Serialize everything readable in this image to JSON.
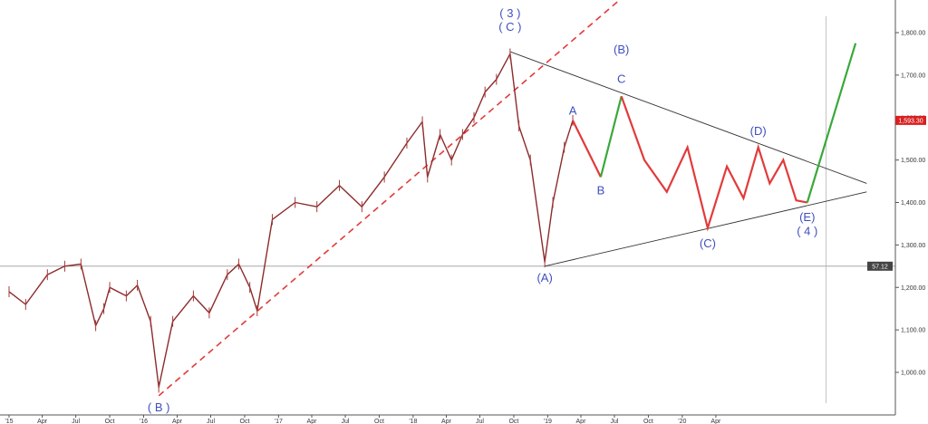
{
  "chart_data": {
    "type": "line",
    "title": "",
    "xlabel": "",
    "ylabel": "",
    "ylim": [
      890,
      1870
    ],
    "grid": false,
    "y_ticks": [
      "1,800.00",
      "1,700.00",
      "1,600.00",
      "1,500.00",
      "1,400.00",
      "1,300.00",
      "1,200.00",
      "1,100.00",
      "1,000.00"
    ],
    "x_ticks": [
      "'15",
      "Apr",
      "Jul",
      "Oct",
      "'16",
      "Apr",
      "Jul",
      "Oct",
      "'17",
      "Apr",
      "Jul",
      "Oct",
      "'18",
      "Apr",
      "Jul",
      "Oct",
      "'19",
      "Apr",
      "Jul",
      "Oct",
      "'20",
      "Apr"
    ],
    "price_series": {
      "name": "",
      "x": [
        "2015-01-01",
        "2015-02-15",
        "2015-04-15",
        "2015-06-01",
        "2015-07-15",
        "2015-08-24",
        "2015-09-15",
        "2015-10-01",
        "2015-11-15",
        "2015-12-15",
        "2016-01-20",
        "2016-02-11",
        "2016-03-20",
        "2016-05-15",
        "2016-06-27",
        "2016-08-15",
        "2016-09-15",
        "2016-10-15",
        "2016-11-04",
        "2016-12-15",
        "2017-02-15",
        "2017-04-15",
        "2017-06-15",
        "2017-08-15",
        "2017-10-15",
        "2017-12-15",
        "2018-01-26",
        "2018-02-09",
        "2018-03-15",
        "2018-04-15",
        "2018-05-15",
        "2018-06-15",
        "2018-07-15",
        "2018-08-15",
        "2018-09-21",
        "2018-10-15",
        "2018-11-15",
        "2018-12-24",
        "2019-01-15",
        "2019-02-15",
        "2019-03-10"
      ],
      "values": [
        1190,
        1160,
        1230,
        1250,
        1255,
        1110,
        1150,
        1200,
        1180,
        1205,
        1120,
        965,
        1120,
        1180,
        1140,
        1230,
        1255,
        1200,
        1145,
        1360,
        1400,
        1390,
        1440,
        1390,
        1460,
        1540,
        1590,
        1460,
        1560,
        1500,
        1560,
        1600,
        1660,
        1690,
        1750,
        1580,
        1500,
        1260,
        1400,
        1530,
        1593.3
      ]
    },
    "projection_series": [
      {
        "name": "",
        "color": "#e23a3a",
        "x": [
          "2019-03-10",
          "2019-05-25"
        ],
        "values": [
          1593.3,
          1460
        ]
      },
      {
        "name": "",
        "color": "#3aa83a",
        "x": [
          "2019-05-25",
          "2019-07-20"
        ],
        "values": [
          1460,
          1650
        ]
      },
      {
        "name": "",
        "color": "#e23a3a",
        "x": [
          "2019-07-20",
          "2019-09-20",
          "2019-11-20",
          "2020-01-15",
          "2020-03-10",
          "2020-05-01",
          "2020-06-15",
          "2020-07-25",
          "2020-08-25",
          "2020-10-01",
          "2020-11-05",
          "2020-12-05"
        ],
        "values": [
          1650,
          1500,
          1425,
          1530,
          1340,
          1485,
          1410,
          1530,
          1445,
          1500,
          1405,
          1400
        ]
      },
      {
        "name": "",
        "color": "#3aa83a",
        "x": [
          "2020-12-05",
          "2021-04-15"
        ],
        "values": [
          1400,
          1775
        ]
      }
    ],
    "trend_lines": [
      {
        "type": "solid",
        "color": "#333333",
        "x": [
          "2018-09-21",
          "2021-05-15"
        ],
        "values": [
          1755,
          1445
        ]
      },
      {
        "type": "solid",
        "color": "#333333",
        "x": [
          "2018-12-24",
          "2021-05-15"
        ],
        "values": [
          1250,
          1425
        ]
      },
      {
        "type": "dashed",
        "color": "#e23a3a",
        "x": [
          "2016-02-11",
          "2019-08-15"
        ],
        "values": [
          945,
          1900
        ]
      }
    ],
    "annotations": [
      {
        "text": "( 3 )",
        "x": "2018-09-21",
        "y": 1845
      },
      {
        "text": "( C )",
        "x": "2018-09-21",
        "y": 1813
      },
      {
        "text": "( B )",
        "x": "2016-02-11",
        "y": 917
      },
      {
        "text": "(A)",
        "x": "2018-12-24",
        "y": 1222
      },
      {
        "text": "A",
        "x": "2019-03-10",
        "y": 1615
      },
      {
        "text": "B",
        "x": "2019-05-25",
        "y": 1428
      },
      {
        "text": "C",
        "x": "2019-07-20",
        "y": 1690
      },
      {
        "text": "(B)",
        "x": "2019-07-20",
        "y": 1760
      },
      {
        "text": "(C)",
        "x": "2020-03-10",
        "y": 1303
      },
      {
        "text": "(D)",
        "x": "2020-07-25",
        "y": 1568
      },
      {
        "text": "(E)",
        "x": "2020-12-05",
        "y": 1365
      },
      {
        "text": "( 4 )",
        "x": "2020-12-05",
        "y": 1332
      }
    ],
    "price_label": {
      "text": "1,593.30",
      "value": 1593.3,
      "color": "#d82020"
    },
    "horizontal_line": {
      "value": 1250,
      "label": "57.12",
      "color": "#444444"
    },
    "vertical_line": {
      "x": "2021-01-25"
    }
  }
}
